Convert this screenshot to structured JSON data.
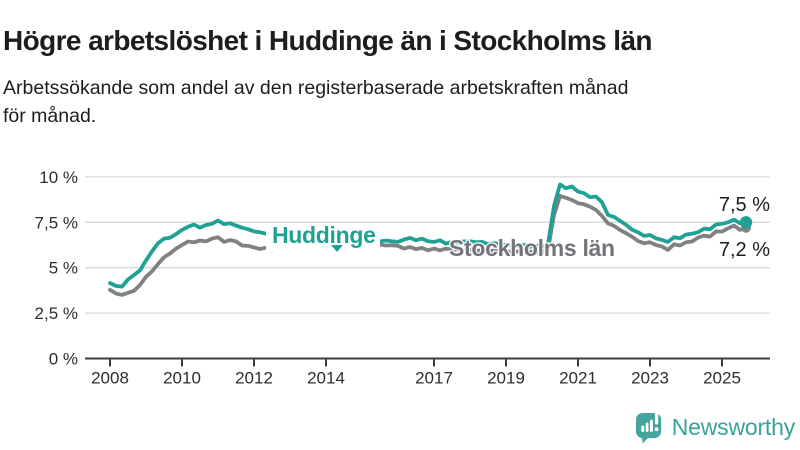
{
  "title": "Högre arbetslöshet i Huddinge än i Stockholms län",
  "subtitle_lines": [
    "Arbetssökande som andel av den registerbaserade arbetskraften månad",
    "för månad."
  ],
  "footer": {
    "brand": "Newsworthy"
  },
  "colors": {
    "huddinge": "#1fa294",
    "stockholm_line": "#7f8184",
    "stockholm_label": "#717478",
    "grid": "#d9d9d9",
    "axis": "#3c3c3c",
    "tick_text": "#2e2e2e",
    "value_text": "#1d1d1b",
    "logo_teal": "#45a49d",
    "wordmark_teal": "#3aa09a",
    "background": "#ffffff"
  },
  "chart_data": {
    "type": "line",
    "unit": "%",
    "x_start": 2008,
    "x_step_months": 2,
    "x_ticks": [
      2008,
      2010,
      2012,
      2014,
      2017,
      2019,
      2021,
      2023,
      2025
    ],
    "y_ticks": [
      0,
      2.5,
      5,
      7.5,
      10
    ],
    "y_tick_labels": [
      "0 %",
      "2,5 %",
      "5 %",
      "7,5 %",
      "10 %"
    ],
    "ylim": [
      0,
      10.8
    ],
    "grid": true,
    "legend": "inline-labels",
    "series": [
      {
        "name": "Stockholms län",
        "end_label": "7,2 %",
        "end_value": 7.2,
        "values": [
          3.78,
          3.58,
          3.5,
          3.62,
          3.73,
          4.05,
          4.5,
          4.8,
          5.2,
          5.57,
          5.78,
          6.05,
          6.25,
          6.44,
          6.4,
          6.5,
          6.45,
          6.6,
          6.68,
          6.42,
          6.52,
          6.45,
          6.22,
          6.2,
          6.12,
          6.03,
          6.1,
          5.95,
          6.0,
          6.08,
          6.15,
          6.2,
          6.25,
          6.3,
          6.27,
          6.32,
          6.3,
          6.27,
          6.25,
          6.3,
          6.26,
          6.28,
          6.25,
          6.3,
          6.26,
          6.28,
          6.22,
          6.24,
          6.2,
          6.05,
          6.14,
          6.02,
          6.09,
          5.96,
          6.05,
          5.96,
          6.05,
          5.98,
          6.02,
          5.95,
          6.0,
          5.92,
          5.97,
          5.9,
          5.95,
          5.88,
          5.92,
          5.85,
          5.9,
          5.85,
          5.88,
          5.82,
          5.85,
          6.0,
          7.9,
          8.95,
          8.85,
          8.73,
          8.55,
          8.49,
          8.36,
          8.18,
          7.85,
          7.44,
          7.3,
          7.08,
          6.9,
          6.71,
          6.47,
          6.35,
          6.4,
          6.25,
          6.16,
          5.98,
          6.29,
          6.22,
          6.4,
          6.44,
          6.66,
          6.77,
          6.71,
          7.0,
          6.99,
          7.17,
          7.32,
          7.08,
          7.2
        ]
      },
      {
        "name": "Huddinge",
        "end_label": "7,5 %",
        "end_value": 7.5,
        "values": [
          4.15,
          4.0,
          3.96,
          4.35,
          4.6,
          4.85,
          5.4,
          5.9,
          6.35,
          6.6,
          6.65,
          6.85,
          7.08,
          7.25,
          7.38,
          7.2,
          7.35,
          7.42,
          7.6,
          7.4,
          7.45,
          7.32,
          7.2,
          7.12,
          7.0,
          6.95,
          6.88,
          6.8,
          6.85,
          6.9,
          6.95,
          6.9,
          6.95,
          6.9,
          6.85,
          6.8,
          6.85,
          6.8,
          6.7,
          6.65,
          6.6,
          6.55,
          6.6,
          6.5,
          6.55,
          6.45,
          6.5,
          6.46,
          6.42,
          6.55,
          6.64,
          6.51,
          6.6,
          6.46,
          6.42,
          6.51,
          6.32,
          6.42,
          6.38,
          6.45,
          6.46,
          6.4,
          6.42,
          6.3,
          6.35,
          6.3,
          6.25,
          6.3,
          6.2,
          6.25,
          6.15,
          6.2,
          6.15,
          6.3,
          8.4,
          9.58,
          9.38,
          9.47,
          9.19,
          9.1,
          8.88,
          8.92,
          8.6,
          7.9,
          7.8,
          7.58,
          7.36,
          7.1,
          6.95,
          6.75,
          6.8,
          6.62,
          6.53,
          6.42,
          6.68,
          6.62,
          6.82,
          6.88,
          6.95,
          7.15,
          7.12,
          7.38,
          7.42,
          7.5,
          7.65,
          7.45,
          7.5
        ]
      }
    ]
  }
}
